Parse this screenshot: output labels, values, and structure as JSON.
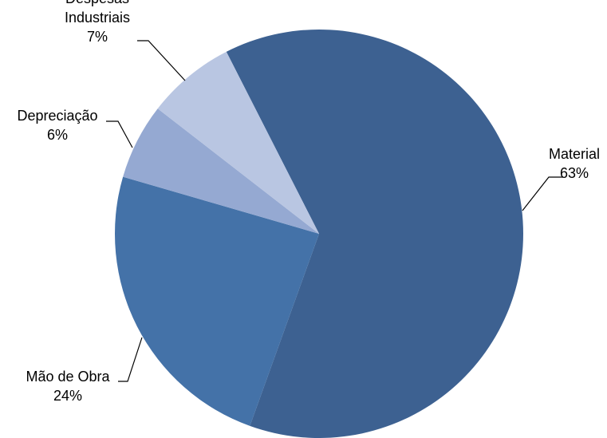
{
  "chart_data": {
    "type": "pie",
    "title": "",
    "start_angle_deg": -27,
    "direction": "clockwise",
    "legend": "none",
    "colors": [
      "#3d6191",
      "#4472a8",
      "#95a9d2",
      "#b9c6e2"
    ],
    "slices": [
      {
        "label": "Material",
        "value": 63,
        "pct_text": "63%",
        "name_lines": [
          "Material"
        ]
      },
      {
        "label": "Mão de Obra",
        "value": 24,
        "pct_text": "24%",
        "name_lines": [
          "Mão de Obra"
        ]
      },
      {
        "label": "Depreciação",
        "value": 6,
        "pct_text": "6%",
        "name_lines": [
          "Depreciação"
        ]
      },
      {
        "label": "Despesas Industriais",
        "value": 7,
        "pct_text": "7%",
        "name_lines": [
          "Despesas",
          "Industriais"
        ]
      }
    ]
  }
}
